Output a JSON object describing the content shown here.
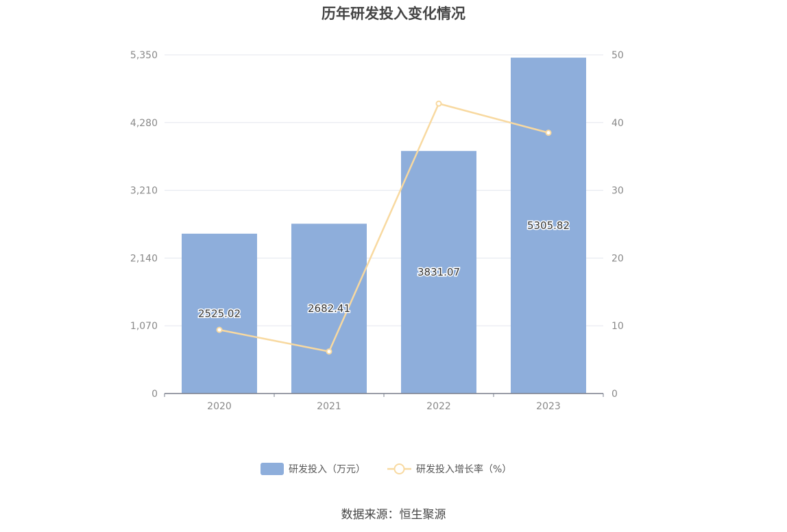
{
  "title": "历年研发投入变化情况",
  "source": "数据来源：恒生聚源",
  "chart_data": {
    "type": "bar",
    "categories": [
      "2020",
      "2021",
      "2022",
      "2023"
    ],
    "series": [
      {
        "name": "研发投入（万元）",
        "type": "bar",
        "axis": "left",
        "color": "#8eaedb",
        "values": [
          2525.02,
          2682.41,
          3831.07,
          5305.82
        ],
        "labels": [
          "2525.02",
          "2682.41",
          "3831.07",
          "5305.82"
        ]
      },
      {
        "name": "研发投入增长率（%）",
        "type": "line",
        "axis": "right",
        "color": "#f8d9a0",
        "values": [
          9.4,
          6.2,
          42.8,
          38.5
        ]
      }
    ],
    "y_left": {
      "ylim": [
        0,
        5350
      ],
      "ticks": [
        "0",
        "1,070",
        "2,140",
        "3,210",
        "4,280",
        "5,350"
      ]
    },
    "y_right": {
      "ylim": [
        0,
        50
      ],
      "ticks": [
        "0",
        "10",
        "20",
        "30",
        "40",
        "50"
      ]
    },
    "grid": true,
    "legend": "bottom"
  }
}
